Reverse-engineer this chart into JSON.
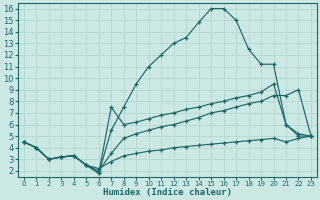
{
  "xlabel": "Humidex (Indice chaleur)",
  "bg_color": "#cce8e4",
  "grid_color": "#b8d8d4",
  "line_color": "#1a6868",
  "xlim": [
    -0.5,
    23.5
  ],
  "ylim": [
    1.5,
    16.5
  ],
  "xticks": [
    0,
    1,
    2,
    3,
    4,
    5,
    6,
    7,
    8,
    9,
    10,
    11,
    12,
    13,
    14,
    15,
    16,
    17,
    18,
    19,
    20,
    21,
    22,
    23
  ],
  "yticks": [
    2,
    3,
    4,
    5,
    6,
    7,
    8,
    9,
    10,
    11,
    12,
    13,
    14,
    15,
    16
  ],
  "lines": [
    {
      "x": [
        0,
        1,
        2,
        3,
        4,
        5,
        6,
        7,
        8,
        9,
        10,
        11,
        12,
        13,
        14,
        15,
        16,
        17,
        18,
        19,
        20,
        21,
        22,
        23
      ],
      "y": [
        4.5,
        4.0,
        3.0,
        3.2,
        3.3,
        2.5,
        1.8,
        5.5,
        7.5,
        9.5,
        11.0,
        12.0,
        13.0,
        13.5,
        14.8,
        16.0,
        16.0,
        15.0,
        12.5,
        11.2,
        11.2,
        6.0,
        5.0,
        5.0
      ]
    },
    {
      "x": [
        0,
        1,
        2,
        3,
        4,
        5,
        6,
        7,
        8,
        9,
        10,
        11,
        12,
        13,
        14,
        15,
        16,
        17,
        18,
        19,
        20,
        21,
        22,
        23
      ],
      "y": [
        4.5,
        4.0,
        3.0,
        3.2,
        3.3,
        2.5,
        1.8,
        7.5,
        6.0,
        6.2,
        6.5,
        6.8,
        7.0,
        7.3,
        7.5,
        7.8,
        8.0,
        8.3,
        8.5,
        8.8,
        9.5,
        6.0,
        5.2,
        5.0
      ]
    },
    {
      "x": [
        0,
        1,
        2,
        3,
        4,
        5,
        6,
        7,
        8,
        9,
        10,
        11,
        12,
        13,
        14,
        15,
        16,
        17,
        18,
        19,
        20,
        21,
        22,
        23
      ],
      "y": [
        4.5,
        4.0,
        3.0,
        3.2,
        3.3,
        2.5,
        2.2,
        2.8,
        3.3,
        3.5,
        3.7,
        3.8,
        4.0,
        4.1,
        4.2,
        4.3,
        4.4,
        4.5,
        4.6,
        4.7,
        4.8,
        4.5,
        4.8,
        5.0
      ]
    },
    {
      "x": [
        0,
        1,
        2,
        3,
        4,
        5,
        6,
        7,
        8,
        9,
        10,
        11,
        12,
        13,
        14,
        15,
        16,
        17,
        18,
        19,
        20,
        21,
        22,
        23
      ],
      "y": [
        4.5,
        4.0,
        3.0,
        3.2,
        3.3,
        2.5,
        2.0,
        3.5,
        4.8,
        5.2,
        5.5,
        5.8,
        6.0,
        6.3,
        6.6,
        7.0,
        7.2,
        7.5,
        7.8,
        8.0,
        8.5,
        8.5,
        9.0,
        5.0
      ]
    }
  ]
}
